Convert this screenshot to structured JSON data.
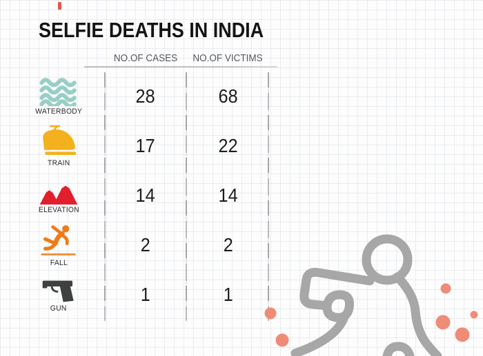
{
  "title": "SELFIE DEATHS IN INDIA",
  "table": {
    "columns": [
      "NO.OF CASES",
      "NO.OF VICTIMS"
    ],
    "rows": [
      {
        "icon": "waterbody-icon",
        "label": "WATERBODY",
        "cases": "28",
        "victims": "68"
      },
      {
        "icon": "train-icon",
        "label": "TRAIN",
        "cases": "17",
        "victims": "22"
      },
      {
        "icon": "elevation-icon",
        "label": "ELEVATION",
        "cases": "14",
        "victims": "14"
      },
      {
        "icon": "fall-icon",
        "label": "FALL",
        "cases": "2",
        "victims": "2"
      },
      {
        "icon": "gun-icon",
        "label": "GUN",
        "cases": "1",
        "victims": "1"
      }
    ]
  },
  "chart_data": {
    "type": "table",
    "title": "SELFIE DEATHS IN INDIA",
    "columns": [
      "NO.OF CASES",
      "NO.OF VICTIMS"
    ],
    "categories": [
      "WATERBODY",
      "TRAIN",
      "ELEVATION",
      "FALL",
      "GUN"
    ],
    "series": [
      {
        "name": "NO.OF CASES",
        "values": [
          28,
          17,
          14,
          2,
          1
        ]
      },
      {
        "name": "NO.OF VICTIMS",
        "values": [
          68,
          22,
          14,
          2,
          1
        ]
      }
    ]
  },
  "decorations": {
    "body_outline_icon": "chalk-body-outline-icon",
    "spatter_icon": "blood-spatter-dots"
  },
  "colors": {
    "title_text": "#141414",
    "header_text": "#57585c",
    "value_text": "#1c1c1c",
    "waterbody": "#97cfc6",
    "train": "#f3b11d",
    "elevation": "#e11f2d",
    "fall": "#ee7b17",
    "gun": "#3f4040",
    "chalk": "#a7a7a7",
    "dots": "#ef8c77",
    "accent": "#e2574c"
  }
}
